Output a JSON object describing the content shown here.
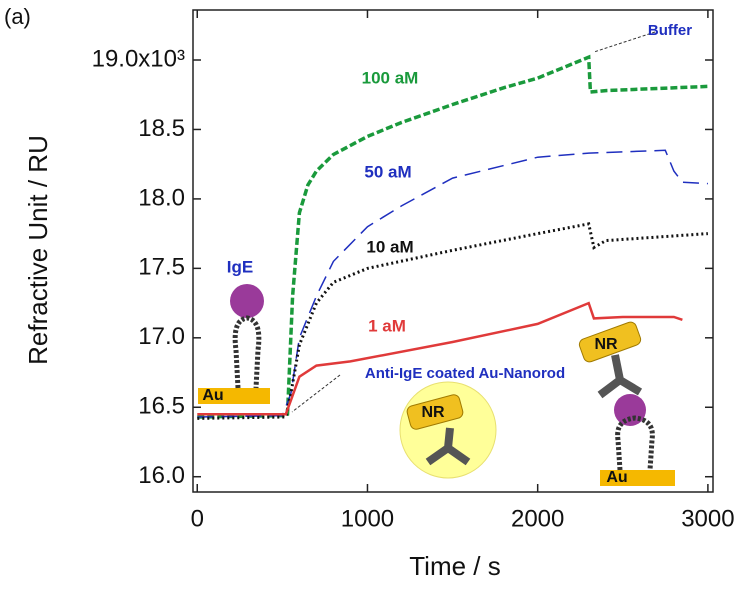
{
  "chart_data": {
    "type": "line",
    "panel_label": "(a)",
    "x_label": "Time / s",
    "y_label": "Refractive Unit / RU",
    "xlim": [
      -25,
      3030
    ],
    "ylim": [
      15.89,
      19.36
    ],
    "xticks": [
      0,
      1000,
      2000,
      3000
    ],
    "yticks": [
      {
        "value": 16.0,
        "label": "16.0"
      },
      {
        "value": 16.5,
        "label": "16.5"
      },
      {
        "value": 17.0,
        "label": "17.0"
      },
      {
        "value": 17.5,
        "label": "17.5"
      },
      {
        "value": 18.0,
        "label": "18.0"
      },
      {
        "value": 18.5,
        "label": "18.5"
      },
      {
        "value": 19.0,
        "label": "19.0x10³"
      }
    ],
    "series": [
      {
        "name": "100 aM",
        "color": "#1a9a3c",
        "x": [
          0,
          500,
          530,
          560,
          600,
          650,
          700,
          800,
          1000,
          1200,
          1500,
          1800,
          2000,
          2300,
          2310,
          2400,
          3000
        ],
        "values": [
          16.43,
          16.44,
          16.45,
          17.3,
          17.9,
          18.1,
          18.2,
          18.32,
          18.45,
          18.55,
          18.68,
          18.8,
          18.87,
          19.02,
          18.77,
          18.78,
          18.81
        ]
      },
      {
        "name": "50 aM",
        "color": "#1f2fbf",
        "x": [
          0,
          500,
          550,
          600,
          700,
          800,
          1000,
          1200,
          1500,
          2000,
          2300,
          2750,
          2800,
          2850,
          3000
        ],
        "values": [
          16.43,
          16.44,
          16.6,
          17.0,
          17.3,
          17.55,
          17.8,
          17.95,
          18.15,
          18.3,
          18.33,
          18.35,
          18.2,
          18.12,
          18.11
        ]
      },
      {
        "name": "10 aM",
        "color": "#111111",
        "x": [
          0,
          520,
          550,
          600,
          700,
          800,
          1000,
          1500,
          2000,
          2300,
          2330,
          2400,
          3000
        ],
        "values": [
          16.42,
          16.43,
          16.6,
          16.95,
          17.25,
          17.4,
          17.5,
          17.63,
          17.75,
          17.82,
          17.65,
          17.7,
          17.75
        ]
      },
      {
        "name": "1 aM",
        "color": "#e03a3a",
        "x": [
          0,
          520,
          550,
          600,
          700,
          900,
          1500,
          2000,
          2300,
          2330,
          2500,
          2800,
          2850
        ],
        "values": [
          16.45,
          16.45,
          16.55,
          16.72,
          16.8,
          16.83,
          16.97,
          17.1,
          17.25,
          17.14,
          17.15,
          17.15,
          17.13
        ]
      }
    ],
    "annotations": {
      "buffer": "Buffer",
      "nanorod": "Anti-IgE coated Au-Nanorod",
      "ige": "IgE",
      "au_left": "Au",
      "nr_center": "NR",
      "nr_right": "NR",
      "au_right": "Au"
    }
  }
}
